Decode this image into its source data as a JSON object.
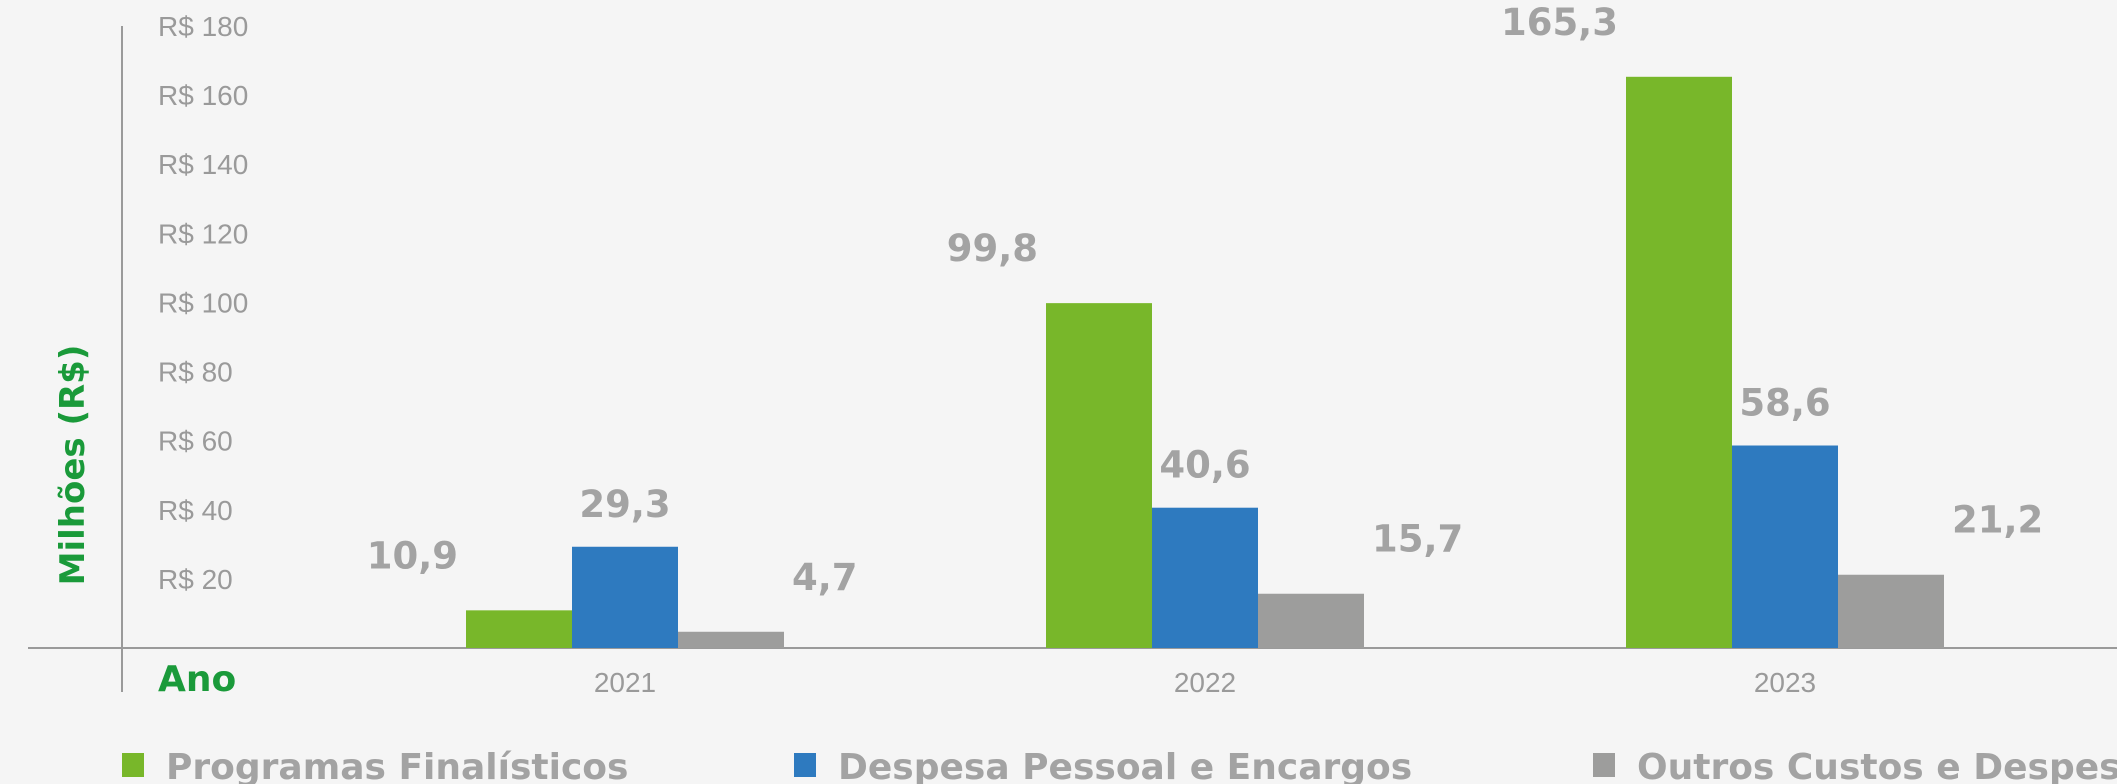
{
  "chart_data": {
    "type": "bar",
    "categories": [
      "2021",
      "2022",
      "2023"
    ],
    "series": [
      {
        "name": "Programas Finalísticos",
        "values": [
          10.9,
          99.8,
          165.3
        ],
        "labels": [
          "10,9",
          "99,8",
          "165,3"
        ],
        "color": "#78b72a"
      },
      {
        "name": "Despesa Pessoal e Encargos",
        "values": [
          29.3,
          40.6,
          58.6
        ],
        "labels": [
          "29,3",
          "40,6",
          "58,6"
        ],
        "color": "#2e7abf"
      },
      {
        "name": "Outros Custos e Despesas",
        "values": [
          4.7,
          15.7,
          21.2
        ],
        "labels": [
          "4,7",
          "15,7",
          "21,2"
        ],
        "color": "#9d9d9c"
      }
    ],
    "yticks": [
      "R$ 20",
      "R$ 40",
      "R$ 60",
      "R$ 80",
      "R$ 100",
      "R$ 120",
      "R$ 140",
      "R$ 160",
      "R$ 180"
    ],
    "ylim": [
      0,
      180
    ],
    "ylabel": "Milhões (R$)",
    "xlabel": "Ano",
    "grid": false,
    "legend_position": "bottom"
  }
}
